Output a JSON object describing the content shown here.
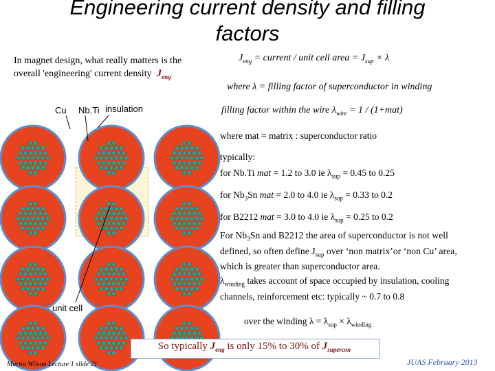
{
  "title": "Engineering current density and filling factors",
  "intro": {
    "line1": "In magnet design, what really matters is the",
    "line2": "overall 'engineering' current density",
    "jeng": "J",
    "jeng_sub": "eng"
  },
  "labels": {
    "cu": "Cu",
    "nbti": "Nb.Ti",
    "insulation": "insulation",
    "unit_cell": "unit cell"
  },
  "eq1": {
    "j": "J",
    "j_sub": "eng",
    "mid": " = current / unit cell area = J",
    "sup_sub": "sup",
    "tail": " × λ"
  },
  "eq2": "where  λ = filling factor of superconductor in winding",
  "eq3": {
    "pre": "filling factor within the wire   λ",
    "sub": "wire",
    "post": " = 1 / (1+mat)"
  },
  "mat_line": "where mat = matrix : superconductor ratio",
  "typically": "typically:",
  "nbti_line": {
    "a": "for Nb.Ti  ",
    "b": "mat",
    "c": " = 1.2 to 3.0  ie  λ",
    "sub": "sup",
    "d": " = 0.45  to   0.25"
  },
  "nb3sn_line": {
    "a": "for Nb",
    "sub3": "3",
    "b": "Sn   ",
    "c": "mat",
    "d": " = 2.0 to 4.0    ie       λ",
    "sub": "sup",
    "e": " = 0.33 to 0.2"
  },
  "b2212_line": {
    "a": "for B2212  ",
    "b": "mat",
    "c": " = 3.0 to 4.0  ie  λ",
    "sub": "sup",
    "d": " = 0.25  to   0.2"
  },
  "para1": {
    "a": "For Nb",
    "sub3": "3",
    "b": "Sn and B2212 the area of superconductor is not well defined, so often define J",
    "sub": "sup",
    "c": " over ‘non matrix’or ‘non Cu’ area, which is greater than superconductor area."
  },
  "para2": {
    "a": "λ",
    "sub": "winding",
    "b": " takes account of space occupied by insulation, cooling channels, reinforcement etc: typically ~ 0.7 to 0.8"
  },
  "winding_line": {
    "a": "over the winding   λ = λ",
    "sub1": "sup",
    "b": " × λ",
    "sub2": "winding"
  },
  "footer": {
    "a": "So typically ",
    "j": "J",
    "j_sub": "eng",
    "b": "  is  only 15% to 30% of ",
    "j2": "J",
    "j2_sub": "supercon"
  },
  "credit_left": "Martin Wilson Lecture 1 slide 21",
  "credit_right": "JUAS February 2013",
  "colors": {
    "wire_fill": "#e8431f",
    "wire_ring": "#5b8fd0",
    "filament": "#2fa08c",
    "unit_cell_fill": "#fdf6d6",
    "highlight": "#7a1010"
  },
  "wires": [
    {
      "row": 1,
      "col": 1
    },
    {
      "row": 1,
      "col": 2
    },
    {
      "row": 1,
      "col": 3
    },
    {
      "row": 2,
      "col": 1
    },
    {
      "row": 2,
      "col": 2
    },
    {
      "row": 2,
      "col": 3
    },
    {
      "row": 3,
      "col": 1
    },
    {
      "row": 3,
      "col": 2
    },
    {
      "row": 3,
      "col": 3
    },
    {
      "row": 4,
      "col": 1
    },
    {
      "row": 4,
      "col": 2
    },
    {
      "row": 4,
      "col": 3
    }
  ]
}
